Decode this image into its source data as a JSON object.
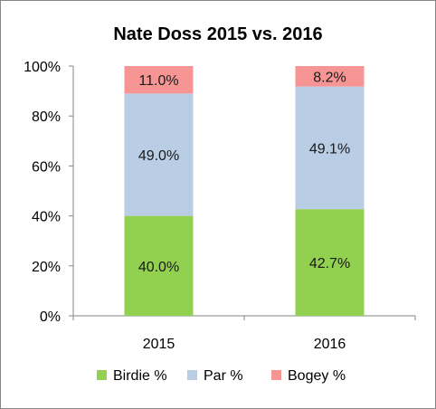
{
  "chart_data": {
    "type": "bar",
    "stacked": true,
    "title": "Nate Doss 2015 vs. 2016",
    "categories": [
      "2015",
      "2016"
    ],
    "ylim": [
      0,
      100
    ],
    "yticks": [
      "0%",
      "20%",
      "40%",
      "60%",
      "80%",
      "100%"
    ],
    "ytick_values": [
      0,
      20,
      40,
      60,
      80,
      100
    ],
    "grid": false,
    "legend_position": "bottom",
    "series": [
      {
        "name": "Birdie %",
        "color": "#92d050",
        "values": [
          40.0,
          42.7
        ],
        "labels": [
          "40.0%",
          "42.7%"
        ]
      },
      {
        "name": "Par %",
        "color": "#b9cde5",
        "values": [
          49.0,
          49.1
        ],
        "labels": [
          "49.0%",
          "49.1%"
        ]
      },
      {
        "name": "Bogey %",
        "color": "#f79595",
        "values": [
          11.0,
          8.2
        ],
        "labels": [
          "11.0%",
          "8.2%"
        ]
      }
    ]
  }
}
